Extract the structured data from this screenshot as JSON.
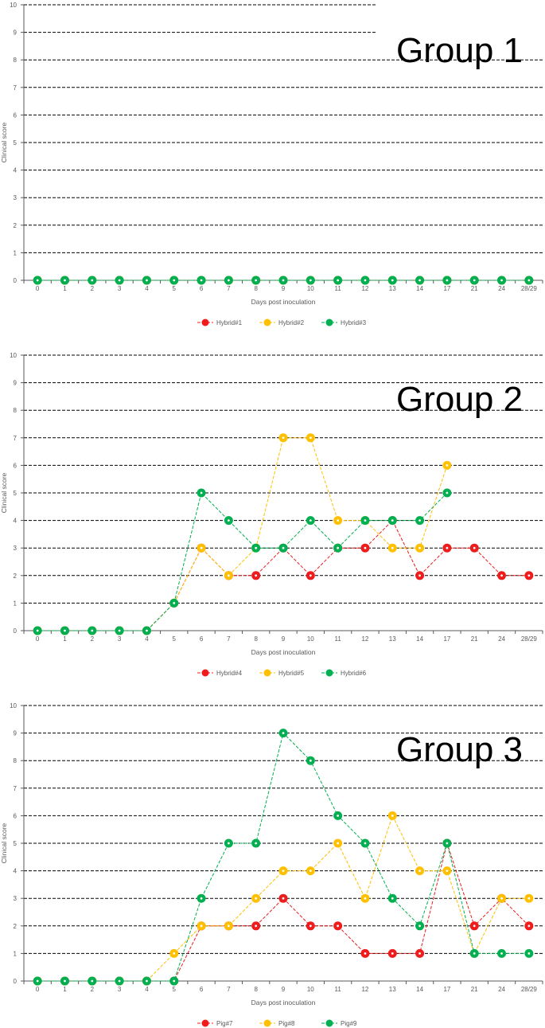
{
  "colors": {
    "red": "#ee1c1c",
    "orange": "#ffc000",
    "green": "#00b050",
    "grid": "#000000",
    "axis": "#595959"
  },
  "chart_data": [
    {
      "type": "line",
      "title": "Group 1",
      "xlabel": "Days post inoculation",
      "ylabel": "Clinical score",
      "ylim": [
        0,
        10
      ],
      "categories": [
        "0",
        "1",
        "2",
        "3",
        "4",
        "5",
        "6",
        "7",
        "8",
        "9",
        "10",
        "11",
        "12",
        "13",
        "14",
        "17",
        "21",
        "24",
        "28/29"
      ],
      "yticks": [
        "0",
        "1",
        "2",
        "3",
        "4",
        "5",
        "6",
        "7",
        "8",
        "9",
        "10"
      ],
      "grid": true,
      "legend": "bottom",
      "series": [
        {
          "name": "Hybrid#1",
          "color": "#ee1c1c",
          "values": [
            0,
            0,
            0,
            0,
            0,
            0,
            0,
            0,
            0,
            0,
            0,
            0,
            0,
            0,
            0,
            0,
            0,
            0,
            0
          ]
        },
        {
          "name": "Hybrid#2",
          "color": "#ffc000",
          "values": [
            0,
            0,
            0,
            0,
            0,
            0,
            0,
            0,
            0,
            0,
            0,
            0,
            0,
            0,
            0,
            0,
            0,
            0,
            0
          ]
        },
        {
          "name": "Hybrid#3",
          "color": "#00b050",
          "values": [
            0,
            0,
            0,
            0,
            0,
            0,
            0,
            0,
            0,
            0,
            0,
            0,
            0,
            0,
            0,
            0,
            0,
            0,
            0
          ]
        }
      ]
    },
    {
      "type": "line",
      "title": "Group 2",
      "xlabel": "Days post inoculation",
      "ylabel": "Clinical score",
      "ylim": [
        0,
        10
      ],
      "categories": [
        "0",
        "1",
        "2",
        "3",
        "4",
        "5",
        "6",
        "7",
        "8",
        "9",
        "10",
        "11",
        "12",
        "13",
        "14",
        "17",
        "21",
        "24",
        "28/29"
      ],
      "yticks": [
        "0",
        "1",
        "2",
        "3",
        "4",
        "5",
        "6",
        "7",
        "8",
        "9",
        "10"
      ],
      "grid": true,
      "legend": "bottom",
      "series": [
        {
          "name": "Hybrid#4",
          "color": "#ee1c1c",
          "values": [
            0,
            0,
            0,
            0,
            0,
            1,
            3,
            2,
            2,
            3,
            2,
            3,
            3,
            4,
            2,
            3,
            3,
            2,
            2
          ]
        },
        {
          "name": "Hybrid#5",
          "color": "#ffc000",
          "values": [
            0,
            0,
            0,
            0,
            0,
            1,
            3,
            2,
            3,
            7,
            7,
            4,
            4,
            3,
            3,
            6,
            null,
            null,
            null
          ]
        },
        {
          "name": "Hybrid#6",
          "color": "#00b050",
          "values": [
            0,
            0,
            0,
            0,
            0,
            1,
            5,
            4,
            3,
            3,
            4,
            3,
            4,
            4,
            4,
            5,
            null,
            null,
            null
          ]
        }
      ]
    },
    {
      "type": "line",
      "title": "Group 3",
      "xlabel": "Days post inoculation",
      "ylabel": "Clinical score",
      "ylim": [
        0,
        10
      ],
      "categories": [
        "0",
        "1",
        "2",
        "3",
        "4",
        "5",
        "6",
        "7",
        "8",
        "9",
        "10",
        "11",
        "12",
        "13",
        "14",
        "17",
        "21",
        "24",
        "28/29"
      ],
      "yticks": [
        "0",
        "1",
        "2",
        "3",
        "4",
        "5",
        "6",
        "7",
        "8",
        "9",
        "10"
      ],
      "grid": true,
      "legend": "bottom",
      "series": [
        {
          "name": "Pig#7",
          "color": "#ee1c1c",
          "values": [
            0,
            0,
            0,
            0,
            0,
            0,
            2,
            2,
            2,
            3,
            2,
            2,
            1,
            1,
            1,
            5,
            2,
            3,
            2
          ]
        },
        {
          "name": "Pig#8",
          "color": "#ffc000",
          "values": [
            0,
            0,
            0,
            0,
            0,
            1,
            2,
            2,
            3,
            4,
            4,
            5,
            3,
            6,
            4,
            4,
            1,
            3,
            3
          ]
        },
        {
          "name": "Pig#9",
          "color": "#00b050",
          "values": [
            0,
            0,
            0,
            0,
            0,
            0,
            3,
            5,
            5,
            9,
            8,
            6,
            5,
            3,
            2,
            5,
            1,
            1,
            1
          ]
        }
      ]
    }
  ]
}
